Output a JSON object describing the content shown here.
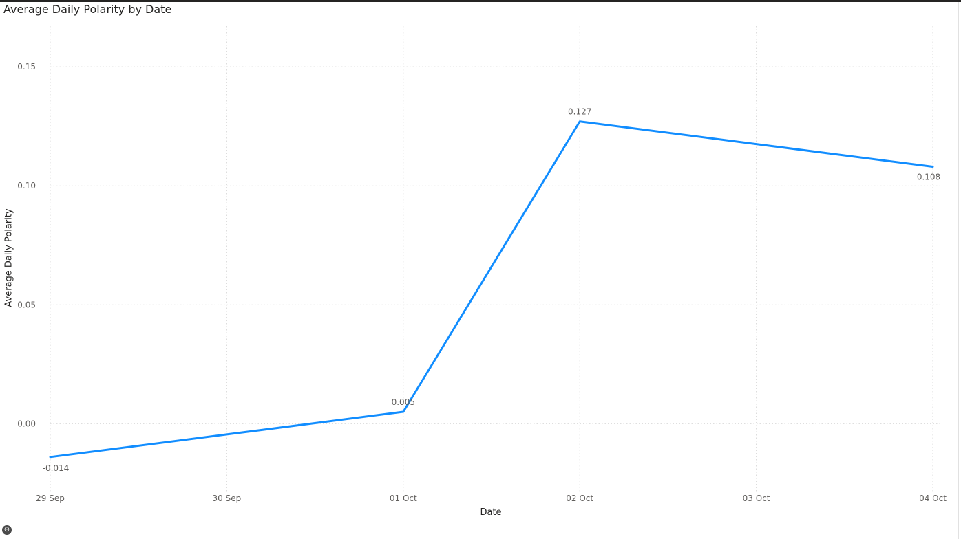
{
  "chart_data": {
    "type": "line",
    "title": "Average Daily Polarity by Date",
    "xlabel": "Date",
    "ylabel": "Average Daily Polarity",
    "categories": [
      "29 Sep",
      "30 Sep",
      "01 Oct",
      "02 Oct",
      "03 Oct",
      "04 Oct"
    ],
    "series": [
      {
        "values": [
          -0.014,
          -0.0045,
          0.005,
          0.127,
          0.1175,
          0.108
        ],
        "labels": [
          "-0.014",
          null,
          "0.005",
          "0.127",
          null,
          "0.108"
        ],
        "color": "#118DFF"
      }
    ],
    "yticks": [
      0.0,
      0.05,
      0.1,
      0.15
    ],
    "ytick_labels": [
      "0.00",
      "0.05",
      "0.10",
      "0.15"
    ],
    "ylim": [
      -0.0285,
      0.1665
    ],
    "grid": true,
    "legend": "none"
  },
  "ui": {
    "focus_icon": "focus-mode-icon",
    "focus_glyph": "⊖"
  }
}
